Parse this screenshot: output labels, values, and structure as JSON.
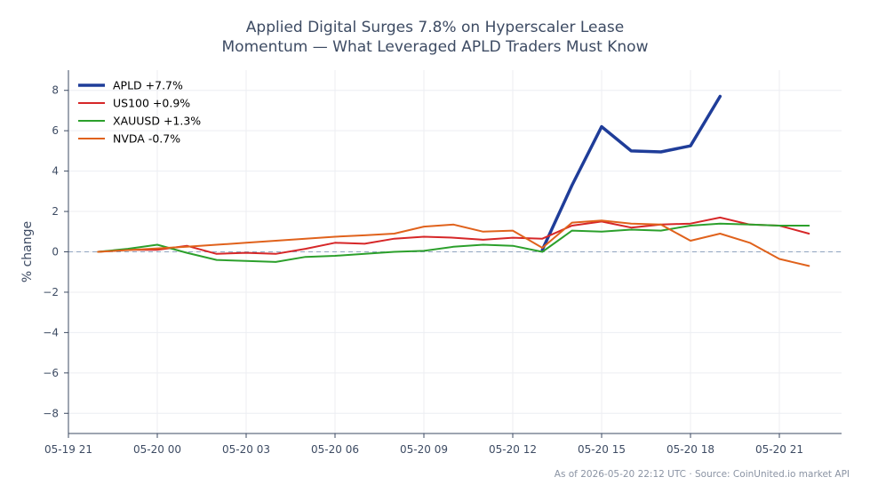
{
  "title": "Applied Digital Surges 7.8% on Hyperscaler Lease",
  "subtitle": "Momentum — What Leveraged APLD Traders Must Know",
  "footer": "As of 2026-05-20 22:12 UTC · Source: CoinUnited.io market API",
  "chart_data": {
    "type": "line",
    "title": "Applied Digital Surges 7.8% on Hyperscaler Lease Momentum — What Leveraged APLD Traders Must Know",
    "xlabel": "",
    "ylabel": "% change",
    "xlim": [
      -1,
      25.1
    ],
    "ylim": [
      -9,
      9
    ],
    "x_ticks": [
      {
        "x": -1,
        "label": "05-19 21"
      },
      {
        "x": 2,
        "label": "05-20 00"
      },
      {
        "x": 5,
        "label": "05-20 03"
      },
      {
        "x": 8,
        "label": "05-20 06"
      },
      {
        "x": 11,
        "label": "05-20 09"
      },
      {
        "x": 14,
        "label": "05-20 12"
      },
      {
        "x": 17,
        "label": "05-20 15"
      },
      {
        "x": 20,
        "label": "05-20 18"
      },
      {
        "x": 23,
        "label": "05-20 21"
      }
    ],
    "y_ticks": [
      8,
      6,
      4,
      2,
      0,
      -2,
      -4,
      -6,
      -8
    ],
    "grid": true,
    "legend_position": "top-left",
    "zero_line": true,
    "series": [
      {
        "name": "APLD +7.7%",
        "color": "#1f3d99",
        "width": 3.5,
        "x": [
          15,
          16,
          17,
          18,
          19,
          20,
          21
        ],
        "y": [
          0.1,
          3.3,
          6.2,
          5.0,
          4.95,
          5.25,
          7.7
        ]
      },
      {
        "name": "US100 +0.9%",
        "color": "#d62728",
        "width": 2,
        "x": [
          0,
          1,
          2,
          3,
          4,
          5,
          6,
          7,
          8,
          9,
          10,
          11,
          12,
          13,
          14,
          15,
          16,
          17,
          18,
          19,
          20,
          21,
          22,
          23,
          24
        ],
        "y": [
          0.0,
          0.1,
          0.1,
          0.3,
          -0.1,
          -0.05,
          -0.1,
          0.15,
          0.45,
          0.4,
          0.65,
          0.75,
          0.7,
          0.6,
          0.7,
          0.65,
          1.3,
          1.5,
          1.2,
          1.35,
          1.4,
          1.7,
          1.35,
          1.3,
          0.9
        ]
      },
      {
        "name": "XAUUSD +1.3%",
        "color": "#2ca02c",
        "width": 2,
        "x": [
          0,
          1,
          2,
          3,
          4,
          5,
          6,
          7,
          8,
          9,
          10,
          11,
          12,
          13,
          14,
          15,
          16,
          17,
          18,
          19,
          20,
          21,
          22,
          23,
          24
        ],
        "y": [
          0.0,
          0.15,
          0.35,
          -0.05,
          -0.4,
          -0.45,
          -0.5,
          -0.25,
          -0.2,
          -0.1,
          0.0,
          0.05,
          0.25,
          0.35,
          0.3,
          0.0,
          1.05,
          1.0,
          1.1,
          1.05,
          1.3,
          1.4,
          1.35,
          1.3,
          1.3
        ]
      },
      {
        "name": "NVDA -0.7%",
        "color": "#e0621c",
        "width": 2,
        "x": [
          0,
          3,
          4,
          5,
          6,
          7,
          8,
          9,
          10,
          11,
          12,
          13,
          14,
          15,
          16,
          17,
          18,
          19,
          20,
          21,
          22,
          23,
          24
        ],
        "y": [
          0.0,
          0.25,
          0.35,
          0.45,
          0.55,
          0.65,
          0.75,
          0.82,
          0.9,
          1.25,
          1.35,
          1.0,
          1.05,
          0.2,
          1.45,
          1.55,
          1.4,
          1.35,
          0.55,
          0.9,
          0.45,
          -0.35,
          -0.7
        ]
      }
    ]
  }
}
